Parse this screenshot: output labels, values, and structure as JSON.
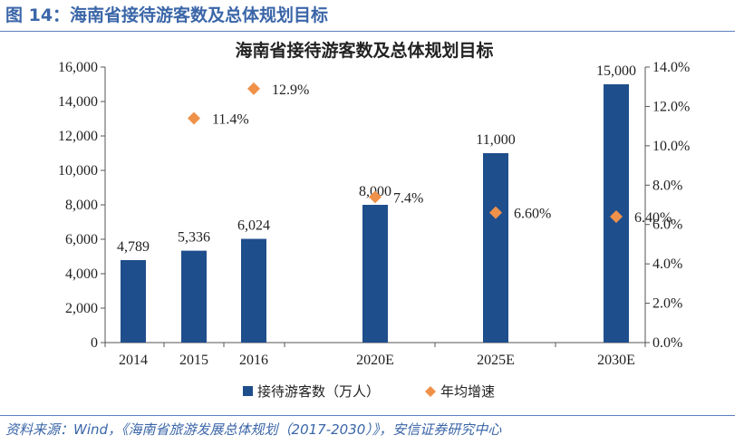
{
  "header": {
    "figure_title": "图 14：海南省接待游客数及总体规划目标"
  },
  "footer": {
    "source": "资料来源：Wind，《海南省旅游发展总体规划（2017-2030）》，安信证券研究中心"
  },
  "chart_data": {
    "type": "bar",
    "title": "海南省接待游客数及总体规划目标",
    "categories": [
      "2014",
      "2015",
      "2016",
      "2020E",
      "2025E",
      "2030E"
    ],
    "series": [
      {
        "name": "接待游客数（万人）",
        "type": "bar",
        "axis": "left",
        "color": "#1f4e8c",
        "values": [
          4789,
          5336,
          6024,
          null,
          null,
          null
        ],
        "labels": [
          "4,789",
          "5,336",
          "6,024",
          "",
          "",
          ""
        ]
      },
      {
        "name": "接待游客数（万人）",
        "type": "bar",
        "axis": "left",
        "color": "#1f4e8c",
        "values": [
          null,
          null,
          null,
          8000,
          11000,
          15000
        ],
        "labels": [
          "",
          "",
          "",
          "8,000",
          "11,000",
          "15,000"
        ]
      },
      {
        "name": "年均增速",
        "type": "scatter",
        "axis": "right",
        "color": "#f0914a",
        "marker": "diamond",
        "values": [
          null,
          11.4,
          12.9,
          7.4,
          6.6,
          6.4
        ],
        "labels": [
          "",
          "11.4%",
          "12.9%",
          "7.4%",
          "6.60%",
          "6.40%"
        ]
      }
    ],
    "y_left": {
      "lim": [
        0,
        16000
      ],
      "ticks": [
        0,
        2000,
        4000,
        6000,
        8000,
        10000,
        12000,
        14000,
        16000
      ],
      "tick_labels": [
        "0",
        "2,000",
        "4,000",
        "6,000",
        "8,000",
        "10,000",
        "12,000",
        "14,000",
        "16,000"
      ]
    },
    "y_right": {
      "lim": [
        0,
        14
      ],
      "ticks": [
        0,
        2,
        4,
        6,
        8,
        10,
        12,
        14
      ],
      "tick_labels": [
        "0.0%",
        "2.0%",
        "4.0%",
        "6.0%",
        "8.0%",
        "10.0%",
        "12.0%",
        "14.0%"
      ]
    },
    "legend": {
      "position": "bottom",
      "entries": [
        {
          "label": "接待游客数（万人）",
          "marker": "square",
          "color": "#1f4e8c"
        },
        {
          "label": "年均增速",
          "marker": "diamond",
          "color": "#f0914a"
        }
      ]
    },
    "grid": false
  }
}
